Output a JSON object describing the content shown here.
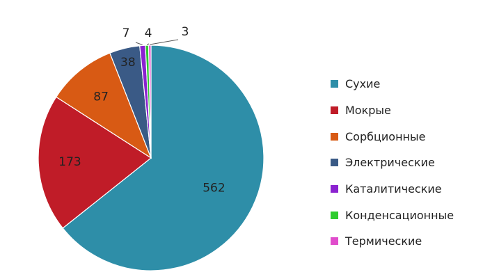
{
  "chart_data": {
    "type": "pie",
    "title": "",
    "categories": [
      "Сухие",
      "Мокрые",
      "Сорбционные",
      "Электрические",
      "Каталитические",
      "Конденсационные",
      "Термические"
    ],
    "values": [
      562,
      173,
      87,
      38,
      7,
      4,
      3
    ],
    "data_labels": [
      "562",
      "173",
      "87",
      "38",
      "7",
      "4",
      "3"
    ],
    "colors": [
      "#2e8ea8",
      "#c01c28",
      "#d85a14",
      "#3a5a86",
      "#8b22d0",
      "#2ecc2e",
      "#e04ccc"
    ],
    "start_angle_deg": 0,
    "direction": "clockwise",
    "legend_position": "right"
  }
}
